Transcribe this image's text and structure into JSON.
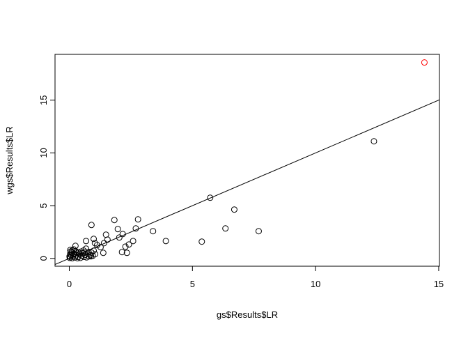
{
  "chart_data": {
    "type": "scatter",
    "title": "",
    "xlabel": "gs$Results$LR",
    "ylabel": "wgs$Results$LR",
    "xlim": [
      -0.58,
      15.03
    ],
    "ylim": [
      -0.74,
      19.34
    ],
    "xticks": [
      0,
      5,
      10,
      15
    ],
    "yticks": [
      0,
      5,
      10,
      15
    ],
    "grid": false,
    "point_color": "#000000",
    "highlight_color": "#ff0000",
    "reference_line": {
      "intercept": 0,
      "slope": 1,
      "color": "#000000"
    },
    "points": [
      [
        0.9,
        3.17
      ],
      [
        1.83,
        3.64
      ],
      [
        2.79,
        3.7
      ],
      [
        1.97,
        2.78
      ],
      [
        2.7,
        2.84
      ],
      [
        1.49,
        2.25
      ],
      [
        2.17,
        2.31
      ],
      [
        2.03,
        1.98
      ],
      [
        1.55,
        1.78
      ],
      [
        3.4,
        2.58
      ],
      [
        3.92,
        1.65
      ],
      [
        2.59,
        1.65
      ],
      [
        2.42,
        1.32
      ],
      [
        2.28,
        1.12
      ],
      [
        2.14,
        0.6
      ],
      [
        2.34,
        0.53
      ],
      [
        1.38,
        0.53
      ],
      [
        0.99,
        1.85
      ],
      [
        0.68,
        1.65
      ],
      [
        1.04,
        1.45
      ],
      [
        1.13,
        1.26
      ],
      [
        1.41,
        1.45
      ],
      [
        1.27,
        1.06
      ],
      [
        0.68,
        0.93
      ],
      [
        0.25,
        1.19
      ],
      [
        0.99,
        0.73
      ],
      [
        5.38,
        1.59
      ],
      [
        5.72,
        5.75
      ],
      [
        6.34,
        2.84
      ],
      [
        6.7,
        4.63
      ],
      [
        7.69,
        2.58
      ],
      [
        12.37,
        11.1
      ],
      [
        0.02,
        0.05
      ],
      [
        0.05,
        0.12
      ],
      [
        0.08,
        0.3
      ],
      [
        0.1,
        0.55
      ],
      [
        0.12,
        0.75
      ],
      [
        0.03,
        0.4
      ],
      [
        0.15,
        0.2
      ],
      [
        0.2,
        0.45
      ],
      [
        0.22,
        0.1
      ],
      [
        0.28,
        0.3
      ],
      [
        0.3,
        0.6
      ],
      [
        0.35,
        0.15
      ],
      [
        0.4,
        0.4
      ],
      [
        0.45,
        0.05
      ],
      [
        0.5,
        0.25
      ],
      [
        0.55,
        0.5
      ],
      [
        0.6,
        0.15
      ],
      [
        0.65,
        0.35
      ],
      [
        0.7,
        0.1
      ],
      [
        0.75,
        0.45
      ],
      [
        0.8,
        0.2
      ],
      [
        0.85,
        0.3
      ],
      [
        0.9,
        0.55
      ],
      [
        0.95,
        0.25
      ],
      [
        1.05,
        0.4
      ],
      [
        0.18,
        0.85
      ],
      [
        0.06,
        0.65
      ],
      [
        0.12,
        0.02
      ],
      [
        0.25,
        0.7
      ],
      [
        0.38,
        0.55
      ],
      [
        0.48,
        0.65
      ],
      [
        0.58,
        0.75
      ],
      [
        0.01,
        0.2
      ],
      [
        0.04,
        0.8
      ],
      [
        0.33,
        0.02
      ],
      [
        0.62,
        0.55
      ],
      [
        0.88,
        0.2
      ],
      [
        0.78,
        0.62
      ]
    ],
    "highlighted_points": [
      [
        14.42,
        18.57
      ]
    ]
  }
}
